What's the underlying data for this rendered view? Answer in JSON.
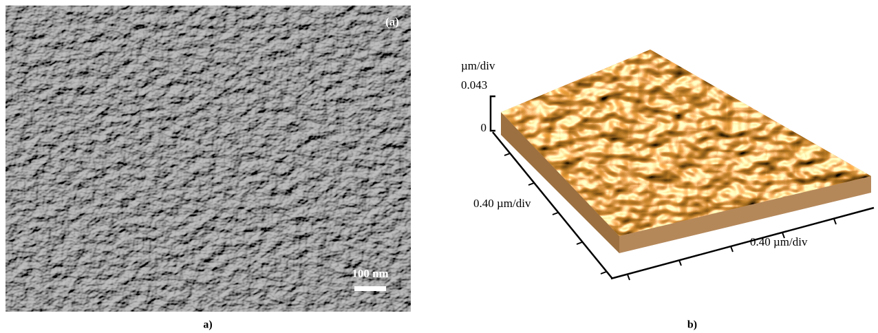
{
  "panel_a": {
    "corner_label": "(a)",
    "scale_bar": "100 nm",
    "caption": "a)"
  },
  "panel_b": {
    "z_unit": "µm/div",
    "z_max": "0.043",
    "z_min": "0",
    "y_label": "0.40 µm/div",
    "x_label": "0.40 µm/div",
    "caption": "b)"
  }
}
